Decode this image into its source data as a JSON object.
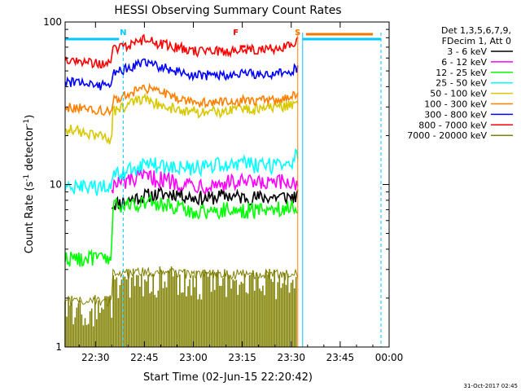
{
  "chart_data": {
    "type": "line",
    "title": "HESSI Observing Summary Count Rates",
    "xlabel": "Start Time (02-Jun-15 22:20:42)",
    "ylabel_main": "Count Rate (s",
    "ylabel_sup1": "-1",
    "ylabel_mid": " detector",
    "ylabel_sup2": "-1",
    "ylabel_end": ")",
    "yscale": "log",
    "ylim": [
      1,
      100
    ],
    "xlim_min": [
      20.7,
      120
    ],
    "x_ticks": [
      {
        "label": "22:30",
        "v": 30
      },
      {
        "label": "22:45",
        "v": 45
      },
      {
        "label": "23:00",
        "v": 60
      },
      {
        "label": "23:15",
        "v": 75
      },
      {
        "label": "23:30",
        "v": 90
      },
      {
        "label": "23:45",
        "v": 105
      },
      {
        "label": "00:00",
        "v": 120
      }
    ],
    "y_ticks": [
      {
        "label": "1",
        "v": 1
      },
      {
        "label": "10",
        "v": 10
      },
      {
        "label": "100",
        "v": 100
      }
    ],
    "legend_header": [
      "Det 1,3,5,6,7,9,",
      "FDecim 1, Att 0"
    ],
    "flags": [
      {
        "label": "N",
        "color": "#00c8ff",
        "x": 38.5
      },
      {
        "label": "F",
        "color": "#ff0000",
        "x": 73
      },
      {
        "label": "S",
        "color": "#f07800",
        "x": 92
      }
    ],
    "footer_date": "31-Oct-2017 02:45",
    "series": [
      {
        "name": "3 - 6 keV",
        "color": "#000000",
        "x": [
          35,
          40,
          45,
          50,
          55,
          60,
          65,
          70,
          75,
          80,
          85,
          90,
          92
        ],
        "y": [
          7.5,
          8.0,
          8.5,
          8.7,
          8.8,
          8.3,
          8.2,
          8.6,
          8.3,
          8.3,
          8.4,
          8.4,
          8.4
        ]
      },
      {
        "name": "6 - 12 keV",
        "color": "#ff00ff",
        "x": [
          35,
          40,
          45,
          50,
          55,
          60,
          65,
          70,
          75,
          80,
          85,
          90,
          92
        ],
        "y": [
          9.8,
          10.5,
          11.0,
          10.8,
          10.4,
          10.0,
          10.0,
          10.2,
          10.3,
          10.0,
          10.1,
          10.3,
          10.3
        ]
      },
      {
        "name": "12 - 25 keV",
        "color": "#00ff00",
        "x": [
          20.7,
          35,
          35.1,
          40,
          45,
          50,
          55,
          60,
          65,
          70,
          75,
          80,
          85,
          90,
          92
        ],
        "y": [
          3.5,
          3.5,
          7.2,
          7.5,
          7.8,
          7.5,
          7.2,
          6.8,
          6.8,
          7.0,
          6.9,
          6.9,
          7.1,
          7.3,
          7.3
        ]
      },
      {
        "name": "25 - 50 keV",
        "color": "#00ffff",
        "x": [
          20.7,
          35,
          35.1,
          40,
          45,
          50,
          55,
          60,
          65,
          70,
          75,
          80,
          85,
          90,
          92
        ],
        "y": [
          9.5,
          9.5,
          11.0,
          12.0,
          13.5,
          13.0,
          12.5,
          12.5,
          13.0,
          13.2,
          13.5,
          13.0,
          13.0,
          14.0,
          15.0
        ]
      },
      {
        "name": "50 - 100 keV",
        "color": "#d8c800",
        "x": [
          20.7,
          35,
          35.1,
          40,
          45,
          50,
          55,
          60,
          65,
          70,
          75,
          80,
          85,
          90,
          92
        ],
        "y": [
          22,
          19,
          28,
          31,
          33,
          31,
          29,
          28,
          28,
          28,
          29,
          29,
          30,
          31,
          32
        ]
      },
      {
        "name": "100 - 300 keV",
        "color": "#ff8000",
        "x": [
          20.7,
          35,
          35.1,
          40,
          45,
          50,
          55,
          60,
          65,
          70,
          75,
          80,
          85,
          90,
          92
        ],
        "y": [
          30,
          28,
          33,
          36,
          39,
          37,
          34,
          32,
          32,
          32,
          33,
          33,
          33,
          35,
          36
        ]
      },
      {
        "name": "300 - 800 keV",
        "color": "#0000ff",
        "x": [
          20.7,
          35,
          35.1,
          40,
          45,
          50,
          55,
          60,
          65,
          70,
          75,
          80,
          85,
          90,
          92
        ],
        "y": [
          43,
          40,
          48,
          52,
          56,
          53,
          50,
          47,
          47,
          47,
          48,
          48,
          48,
          50,
          52
        ]
      },
      {
        "name": "800 - 7000 keV",
        "color": "#ff0000",
        "x": [
          20.7,
          35,
          35.1,
          40,
          45,
          50,
          55,
          60,
          65,
          70,
          75,
          80,
          85,
          90,
          92
        ],
        "y": [
          58,
          55,
          68,
          72,
          78,
          73,
          70,
          66,
          66,
          66,
          67,
          68,
          68,
          72,
          76
        ]
      },
      {
        "name": "7000 - 20000 keV",
        "color": "#808000",
        "x": [
          20.7,
          35,
          35.1,
          45,
          60,
          75,
          92
        ],
        "y": [
          1.9,
          1.9,
          2.8,
          2.9,
          2.8,
          2.8,
          2.8
        ]
      }
    ]
  }
}
